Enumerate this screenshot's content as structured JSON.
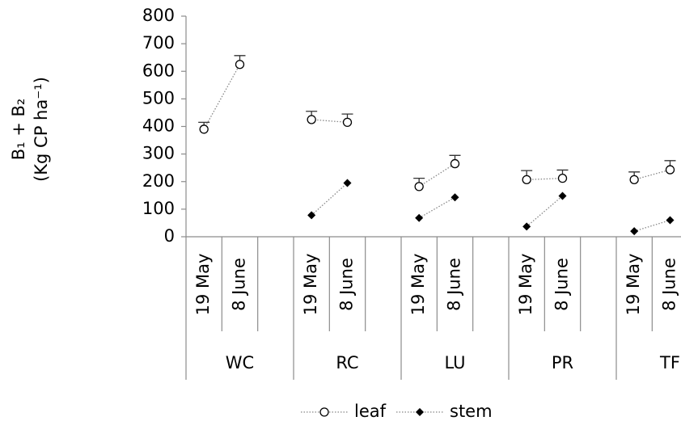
{
  "chart_data": {
    "type": "line",
    "y_label": [
      "B₁ + B₂",
      "(Kg CP ha⁻¹)"
    ],
    "groups": [
      "WC",
      "RC",
      "LU",
      "PR",
      "TF"
    ],
    "categories": [
      "19 May",
      "8 June",
      null,
      "19 May",
      "8 June",
      null,
      "19 May",
      "8 June",
      null,
      "19 May",
      "8 June",
      null,
      "19 May",
      "8 June",
      null
    ],
    "series": [
      {
        "name": "leaf",
        "color": "#000000",
        "marker": "open-circle",
        "values": [
          390,
          625,
          null,
          425,
          415,
          null,
          182,
          265,
          null,
          207,
          212,
          null,
          207,
          243,
          null
        ],
        "errors": [
          25,
          32,
          null,
          30,
          30,
          null,
          30,
          30,
          null,
          33,
          30,
          null,
          28,
          33,
          null
        ]
      },
      {
        "name": "stem",
        "color": "#000000",
        "marker": "diamond",
        "values": [
          null,
          null,
          null,
          78,
          195,
          null,
          68,
          143,
          null,
          37,
          148,
          null,
          20,
          60,
          null
        ]
      }
    ],
    "ylim": [
      0,
      800
    ],
    "yticks": [
      0,
      100,
      200,
      300,
      400,
      500,
      600,
      700,
      800
    ],
    "grid": false,
    "legend": "bottom"
  }
}
